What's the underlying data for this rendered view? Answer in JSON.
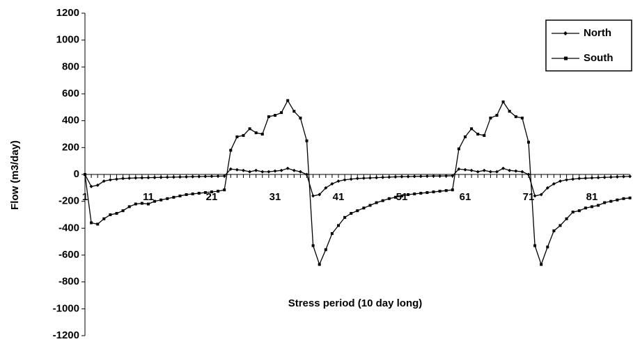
{
  "chart_data": {
    "type": "line",
    "x_label": "Stress period (10 day long)",
    "y_label": "Flow (m3/day)",
    "categories": [
      1,
      null,
      null,
      null,
      null,
      null,
      null,
      null,
      null,
      null,
      11,
      null,
      null,
      null,
      null,
      null,
      null,
      null,
      null,
      null,
      21,
      null,
      null,
      null,
      null,
      null,
      null,
      null,
      null,
      null,
      31,
      null,
      null,
      null,
      null,
      null,
      null,
      null,
      null,
      null,
      41,
      null,
      null,
      null,
      null,
      null,
      null,
      null,
      null,
      null,
      51,
      null,
      null,
      null,
      null,
      null,
      null,
      null,
      null,
      null,
      61,
      null,
      null,
      null,
      null,
      null,
      null,
      null,
      null,
      null,
      71,
      null,
      null,
      null,
      null,
      null,
      null,
      null,
      null,
      null,
      81,
      null,
      null,
      null,
      null,
      null,
      null
    ],
    "series": [
      {
        "name": "North",
        "color": "#000000",
        "marker": "diamond",
        "values": [
          0,
          -90,
          -80,
          -50,
          -40,
          -35,
          -30,
          -28,
          -26,
          -25,
          -24,
          -23,
          -22,
          -21,
          -20,
          -19,
          -18,
          -17,
          -16,
          -15,
          -14,
          -13,
          -12,
          40,
          35,
          30,
          20,
          30,
          20,
          20,
          25,
          30,
          45,
          30,
          20,
          0,
          -160,
          -150,
          -100,
          -70,
          -50,
          -40,
          -35,
          -30,
          -28,
          -26,
          -24,
          -22,
          -20,
          -18,
          -17,
          -16,
          -15,
          -14,
          -13,
          -12,
          -12,
          -11,
          -10,
          40,
          35,
          30,
          20,
          30,
          20,
          20,
          45,
          30,
          25,
          20,
          0,
          -160,
          -150,
          -100,
          -70,
          -50,
          -40,
          -35,
          -30,
          -28,
          -26,
          -24,
          -22,
          -20,
          -18,
          -16,
          -15
        ]
      },
      {
        "name": "South",
        "color": "#000000",
        "marker": "square",
        "values": [
          0,
          -360,
          -370,
          -330,
          -300,
          -290,
          -270,
          -240,
          -220,
          -215,
          -220,
          -200,
          -190,
          -180,
          -170,
          -160,
          -150,
          -145,
          -140,
          -135,
          -130,
          -125,
          -115,
          180,
          280,
          290,
          340,
          310,
          300,
          430,
          440,
          460,
          550,
          470,
          420,
          250,
          -530,
          -670,
          -560,
          -440,
          -380,
          -320,
          -290,
          -270,
          -250,
          -230,
          -210,
          -195,
          -180,
          -170,
          -160,
          -150,
          -145,
          -140,
          -135,
          -130,
          -125,
          -120,
          -115,
          190,
          280,
          340,
          300,
          290,
          420,
          440,
          540,
          470,
          430,
          420,
          240,
          -530,
          -670,
          -540,
          -420,
          -380,
          -330,
          -280,
          -270,
          -250,
          -240,
          -230,
          -210,
          -200,
          -190,
          -180,
          -175
        ]
      }
    ],
    "ylim": [
      -1200,
      1200
    ],
    "yticks": [
      -1200,
      -1000,
      -800,
      -600,
      -400,
      -200,
      0,
      200,
      400,
      600,
      800,
      1000,
      1200
    ],
    "legend": "top-right"
  }
}
